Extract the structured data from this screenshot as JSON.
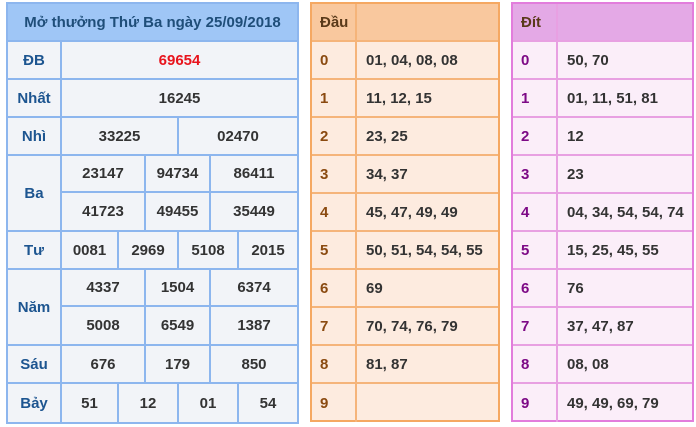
{
  "title": "Mở thưởng Thứ Ba ngày 25/09/2018",
  "colors": {
    "special": "#e8141c",
    "header_blue": "#9fc6f6",
    "header_orange": "#f9c89e",
    "header_pink": "#e4a9e6"
  },
  "prizes": [
    {
      "label": "ĐB",
      "rows": [
        [
          "69654"
        ]
      ]
    },
    {
      "label": "Nhất",
      "rows": [
        [
          "16245"
        ]
      ]
    },
    {
      "label": "Nhì",
      "rows": [
        [
          "33225",
          "02470"
        ]
      ]
    },
    {
      "label": "Ba",
      "rows": [
        [
          "23147",
          "94734",
          "86411"
        ],
        [
          "41723",
          "49455",
          "35449"
        ]
      ]
    },
    {
      "label": "Tư",
      "rows": [
        [
          "0081",
          "2969",
          "5108",
          "2015"
        ]
      ]
    },
    {
      "label": "Năm",
      "rows": [
        [
          "4337",
          "1504",
          "6374"
        ],
        [
          "5008",
          "6549",
          "1387"
        ]
      ]
    },
    {
      "label": "Sáu",
      "rows": [
        [
          "676",
          "179",
          "850"
        ]
      ]
    },
    {
      "label": "Bảy",
      "rows": [
        [
          "51",
          "12",
          "01",
          "54"
        ]
      ]
    }
  ],
  "dau": {
    "header": "Đầu",
    "rows": [
      {
        "k": "0",
        "v": "01, 04, 08, 08"
      },
      {
        "k": "1",
        "v": "11, 12, 15"
      },
      {
        "k": "2",
        "v": "23, 25"
      },
      {
        "k": "3",
        "v": "34, 37"
      },
      {
        "k": "4",
        "v": "45, 47, 49, 49"
      },
      {
        "k": "5",
        "v": "50, 51, 54, 54, 55"
      },
      {
        "k": "6",
        "v": "69"
      },
      {
        "k": "7",
        "v": "70, 74, 76, 79"
      },
      {
        "k": "8",
        "v": "81, 87"
      },
      {
        "k": "9",
        "v": ""
      }
    ]
  },
  "dit": {
    "header": "Đít",
    "rows": [
      {
        "k": "0",
        "v": "50, 70"
      },
      {
        "k": "1",
        "v": "01, 11, 51, 81"
      },
      {
        "k": "2",
        "v": "12"
      },
      {
        "k": "3",
        "v": "23"
      },
      {
        "k": "4",
        "v": "04, 34, 54, 54, 74"
      },
      {
        "k": "5",
        "v": "15, 25, 45, 55"
      },
      {
        "k": "6",
        "v": "76"
      },
      {
        "k": "7",
        "v": "37, 47, 87"
      },
      {
        "k": "8",
        "v": "08, 08"
      },
      {
        "k": "9",
        "v": "49, 49, 69, 79"
      }
    ]
  }
}
